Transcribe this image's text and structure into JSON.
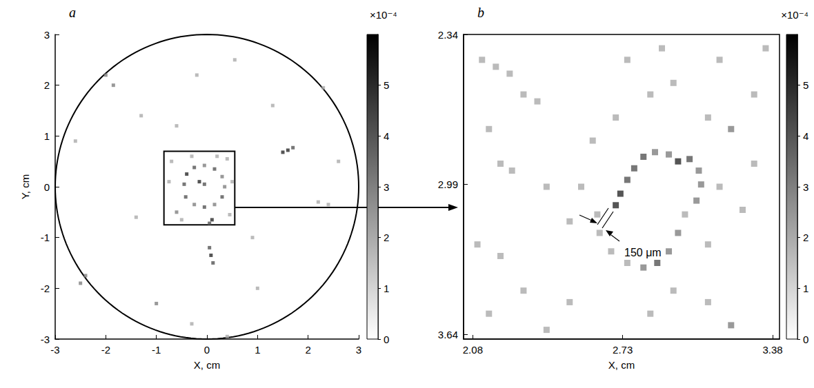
{
  "chart_data": [
    {
      "type": "heatmap",
      "panel_label": "a",
      "x_label": "X, cm",
      "y_label": "Y, cm",
      "xlim": [
        -3,
        3
      ],
      "xticks": [
        -3,
        -2,
        -1,
        0,
        1,
        2,
        3
      ],
      "ylim": [
        -3,
        3
      ],
      "yticks": [
        -3,
        -2,
        -1,
        0,
        1,
        2,
        3
      ],
      "grid": false,
      "circle": {
        "center": [
          0,
          0
        ],
        "radius": 3
      },
      "inset_box": {
        "xlim": [
          -0.85,
          0.55
        ],
        "ylim": [
          -0.75,
          0.7
        ]
      },
      "colorbar": {
        "range": [
          0,
          6
        ],
        "ticks": [
          0,
          1,
          2,
          3,
          4,
          5
        ],
        "title": "×10⁻⁴"
      },
      "cells": [
        [
          -0.45,
          0.05,
          4
        ],
        [
          -0.4,
          0.25,
          5
        ],
        [
          -0.25,
          0.38,
          4
        ],
        [
          -0.05,
          0.42,
          3
        ],
        [
          0.15,
          0.35,
          4
        ],
        [
          0.3,
          0.2,
          3
        ],
        [
          0.35,
          0,
          3
        ],
        [
          0.3,
          -0.2,
          4
        ],
        [
          0.15,
          -0.35,
          3
        ],
        [
          -0.05,
          -0.4,
          4
        ],
        [
          -0.25,
          -0.35,
          3
        ],
        [
          -0.42,
          -0.2,
          4
        ],
        [
          -0.15,
          0.1,
          5
        ],
        [
          -0.05,
          0.05,
          4
        ],
        [
          -0.7,
          0.5,
          2
        ],
        [
          -0.6,
          -0.5,
          3
        ],
        [
          0.4,
          0.55,
          2
        ],
        [
          0.45,
          -0.55,
          2
        ],
        [
          -0.75,
          0.1,
          2
        ],
        [
          0.5,
          0.1,
          2
        ],
        [
          -0.3,
          0.6,
          2
        ],
        [
          0.1,
          -0.65,
          5
        ],
        [
          0.05,
          -0.72,
          4
        ],
        [
          -0.5,
          -0.65,
          2
        ],
        [
          0.2,
          0.6,
          2
        ],
        [
          1.5,
          0.68,
          5
        ],
        [
          1.6,
          0.72,
          5
        ],
        [
          1.7,
          0.77,
          4
        ],
        [
          0.05,
          -1.2,
          4
        ],
        [
          0.08,
          -1.35,
          5
        ],
        [
          0.12,
          -1.5,
          4
        ],
        [
          -1.85,
          2.0,
          3
        ],
        [
          -2.0,
          2.2,
          3
        ],
        [
          -2.4,
          -1.75,
          3
        ],
        [
          -2.5,
          -1.9,
          3
        ],
        [
          2.2,
          -0.3,
          2
        ],
        [
          2.4,
          -0.35,
          2
        ],
        [
          2.3,
          1.95,
          2
        ],
        [
          -1.3,
          1.4,
          2
        ],
        [
          -1.0,
          -2.3,
          3
        ],
        [
          1.0,
          -2.0,
          2
        ],
        [
          0.55,
          2.5,
          2
        ],
        [
          -2.6,
          0.9,
          2
        ],
        [
          2.6,
          0.5,
          2
        ],
        [
          -0.6,
          1.2,
          2
        ],
        [
          0.9,
          -1.0,
          2
        ],
        [
          -1.4,
          -0.6,
          2
        ],
        [
          1.3,
          1.6,
          2
        ],
        [
          -0.3,
          -2.7,
          2
        ],
        [
          0.4,
          -2.95,
          2
        ],
        [
          -0.2,
          2.2,
          2
        ]
      ]
    },
    {
      "type": "heatmap",
      "panel_label": "b",
      "x_label": "X, cm",
      "xlim": [
        2.04,
        3.41
      ],
      "xticks": [
        2.08,
        2.73,
        3.38
      ],
      "ylim": [
        3.66,
        2.34
      ],
      "yticks": [
        2.34,
        2.99,
        3.64
      ],
      "grid": false,
      "annotation": "150 μm",
      "colorbar": {
        "range": [
          0,
          6
        ],
        "ticks": [
          0,
          1,
          2,
          3,
          4,
          5
        ],
        "title": "×10⁻⁴"
      },
      "cells": [
        [
          2.7,
          3.08,
          5
        ],
        [
          2.72,
          3.03,
          5
        ],
        [
          2.75,
          2.97,
          4
        ],
        [
          2.78,
          2.92,
          4
        ],
        [
          2.82,
          2.87,
          4
        ],
        [
          2.87,
          2.85,
          3
        ],
        [
          2.93,
          2.86,
          3
        ],
        [
          2.97,
          2.89,
          5
        ],
        [
          3.02,
          2.88,
          4
        ],
        [
          3.06,
          2.93,
          3
        ],
        [
          3.07,
          2.99,
          3
        ],
        [
          3.05,
          3.06,
          3
        ],
        [
          3.0,
          3.12,
          2
        ],
        [
          2.97,
          3.2,
          3
        ],
        [
          2.93,
          3.28,
          3
        ],
        [
          2.88,
          3.33,
          4
        ],
        [
          2.82,
          3.35,
          3
        ],
        [
          2.75,
          3.33,
          2
        ],
        [
          2.68,
          3.28,
          2
        ],
        [
          2.63,
          3.2,
          2
        ],
        [
          2.62,
          3.12,
          2
        ],
        [
          2.85,
          2.6,
          2
        ],
        [
          2.95,
          2.55,
          2
        ],
        [
          3.1,
          2.7,
          2
        ],
        [
          3.2,
          2.75,
          3
        ],
        [
          3.3,
          2.6,
          2
        ],
        [
          2.7,
          2.7,
          2
        ],
        [
          2.6,
          2.8,
          2
        ],
        [
          3.15,
          3.0,
          2
        ],
        [
          3.25,
          3.1,
          2
        ],
        [
          3.3,
          2.9,
          2
        ],
        [
          2.55,
          3.0,
          2
        ],
        [
          2.5,
          3.15,
          2
        ],
        [
          3.1,
          3.25,
          2
        ],
        [
          2.95,
          3.45,
          2
        ],
        [
          3.1,
          3.5,
          2
        ],
        [
          2.85,
          3.55,
          2
        ],
        [
          3.2,
          3.6,
          3
        ],
        [
          3.15,
          2.45,
          2
        ],
        [
          3.35,
          2.4,
          2
        ],
        [
          2.75,
          2.45,
          2
        ],
        [
          2.9,
          2.4,
          2
        ],
        [
          2.12,
          2.45,
          2
        ],
        [
          2.18,
          2.48,
          2
        ],
        [
          2.24,
          2.51,
          2
        ],
        [
          2.3,
          2.6,
          2
        ],
        [
          2.36,
          2.63,
          2
        ],
        [
          2.15,
          2.75,
          2
        ],
        [
          2.2,
          2.9,
          2
        ],
        [
          2.25,
          2.93,
          2
        ],
        [
          2.4,
          3.0,
          2
        ],
        [
          2.1,
          3.25,
          2
        ],
        [
          2.2,
          3.3,
          2
        ],
        [
          2.3,
          3.45,
          2
        ],
        [
          2.5,
          3.5,
          2
        ],
        [
          2.15,
          3.55,
          2
        ],
        [
          2.4,
          3.62,
          2
        ]
      ]
    }
  ]
}
